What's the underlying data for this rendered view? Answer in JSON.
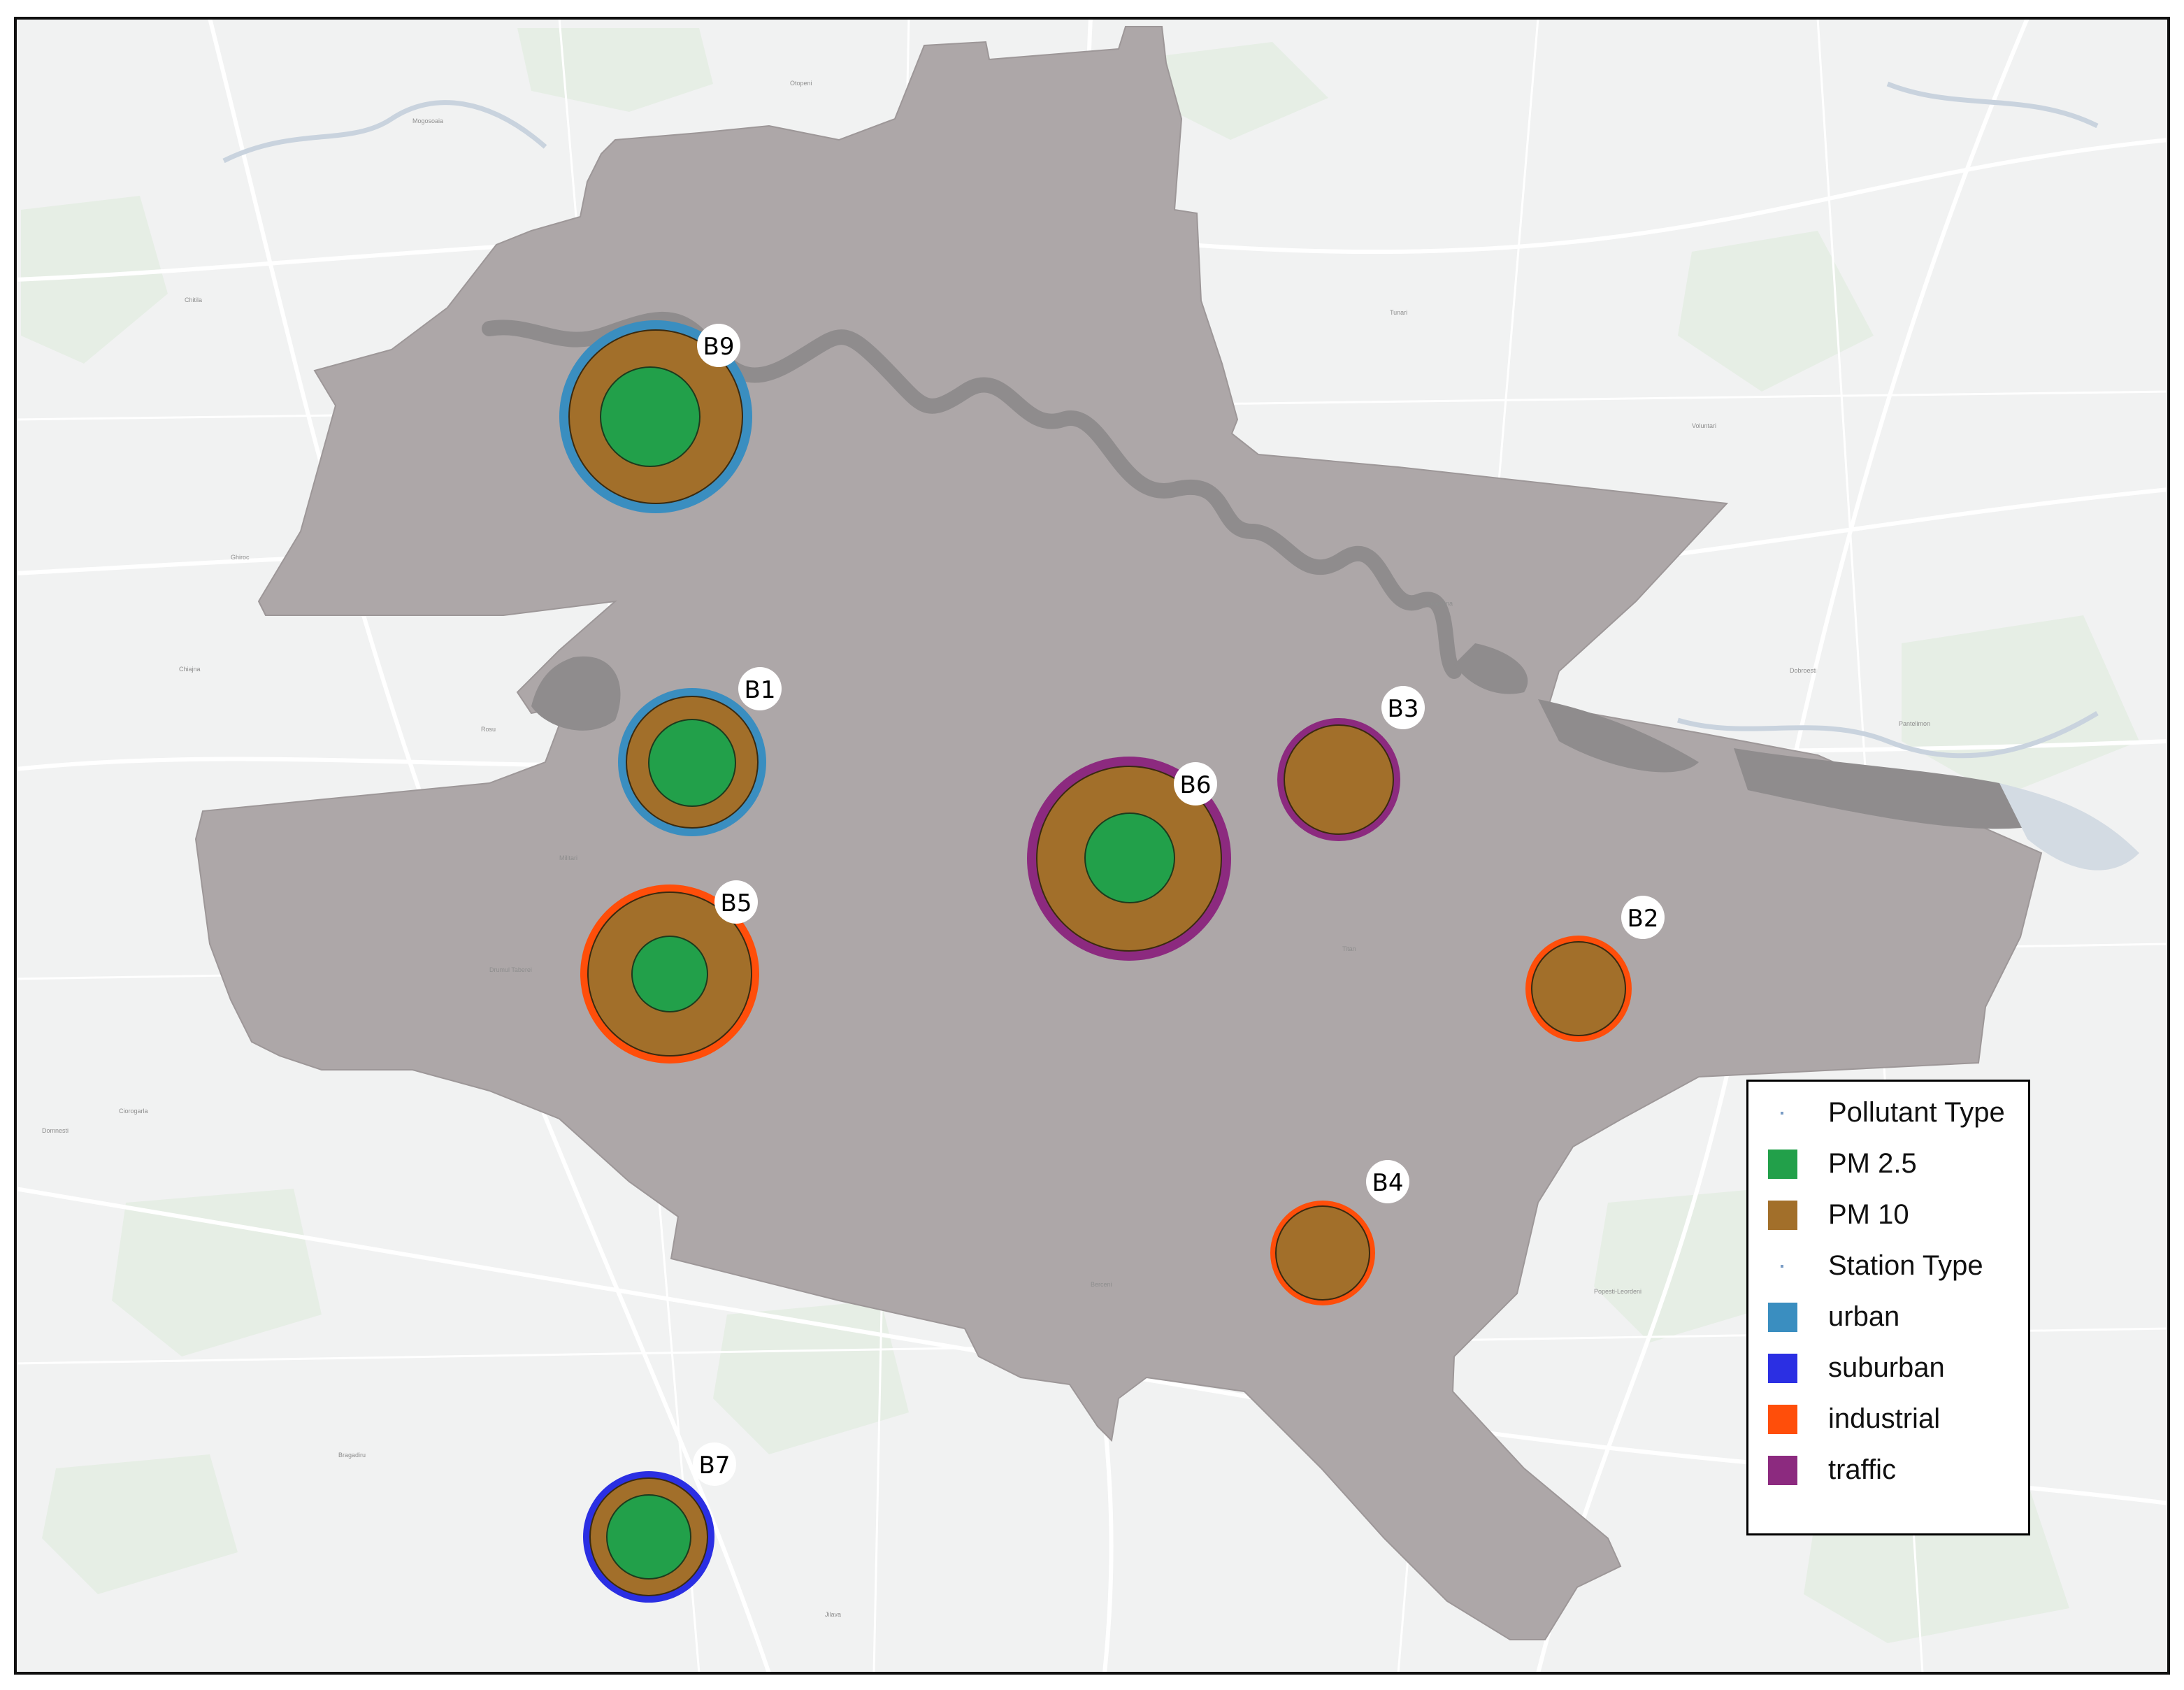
{
  "colors": {
    "land": "#f1f2f2",
    "road": "#ffffff",
    "green_area": "#e8efe7",
    "city_polygon": "#ada7a8",
    "river": "#8f8c8d",
    "pm25": "#22a04a",
    "pm10": "#a26f2a",
    "urban": "#3a8ec0",
    "suburban": "#2b2fe3",
    "industrial": "#ff4e0a",
    "traffic": "#8c2a7f"
  },
  "legend": {
    "pollutant_header": "Pollutant Type",
    "pollutant_items": [
      {
        "label": "PM 2.5",
        "color_key": "pm25"
      },
      {
        "label": "PM 10",
        "color_key": "pm10"
      }
    ],
    "station_header": "Station Type",
    "station_items": [
      {
        "label": "urban",
        "color_key": "urban"
      },
      {
        "label": "suburban",
        "color_key": "suburban"
      },
      {
        "label": "industrial",
        "color_key": "industrial"
      },
      {
        "label": "traffic",
        "color_key": "traffic"
      }
    ]
  },
  "stations": [
    {
      "id": "B9",
      "label": "B9",
      "station_type": "urban",
      "pollutants": [
        "PM 10",
        "PM 2.5"
      ]
    },
    {
      "id": "B1",
      "label": "B1",
      "station_type": "urban",
      "pollutants": [
        "PM 10",
        "PM 2.5"
      ]
    },
    {
      "id": "B5",
      "label": "B5",
      "station_type": "industrial",
      "pollutants": [
        "PM 10",
        "PM 2.5"
      ]
    },
    {
      "id": "B6",
      "label": "B6",
      "station_type": "traffic",
      "pollutants": [
        "PM 10",
        "PM 2.5"
      ]
    },
    {
      "id": "B3",
      "label": "B3",
      "station_type": "traffic",
      "pollutants": [
        "PM 10"
      ]
    },
    {
      "id": "B2",
      "label": "B2",
      "station_type": "industrial",
      "pollutants": [
        "PM 10"
      ]
    },
    {
      "id": "B4",
      "label": "B4",
      "station_type": "industrial",
      "pollutants": [
        "PM 10"
      ]
    },
    {
      "id": "B7",
      "label": "B7",
      "station_type": "suburban",
      "pollutants": [
        "PM 10",
        "PM 2.5"
      ]
    }
  ],
  "place_labels": [
    "Chitila",
    "Mogosoaia",
    "Voluntari",
    "Pantelimon",
    "Chiajna",
    "Ghiroc",
    "Rosu",
    "Jilava",
    "Popesti-Leordeni",
    "Dobroesti",
    "Otopeni",
    "Tunari",
    "Ciorogarla",
    "Bragadiru",
    "Domnesti",
    "Berceni",
    "Militari",
    "Drumul Taberei",
    "Colentina",
    "Titan"
  ]
}
